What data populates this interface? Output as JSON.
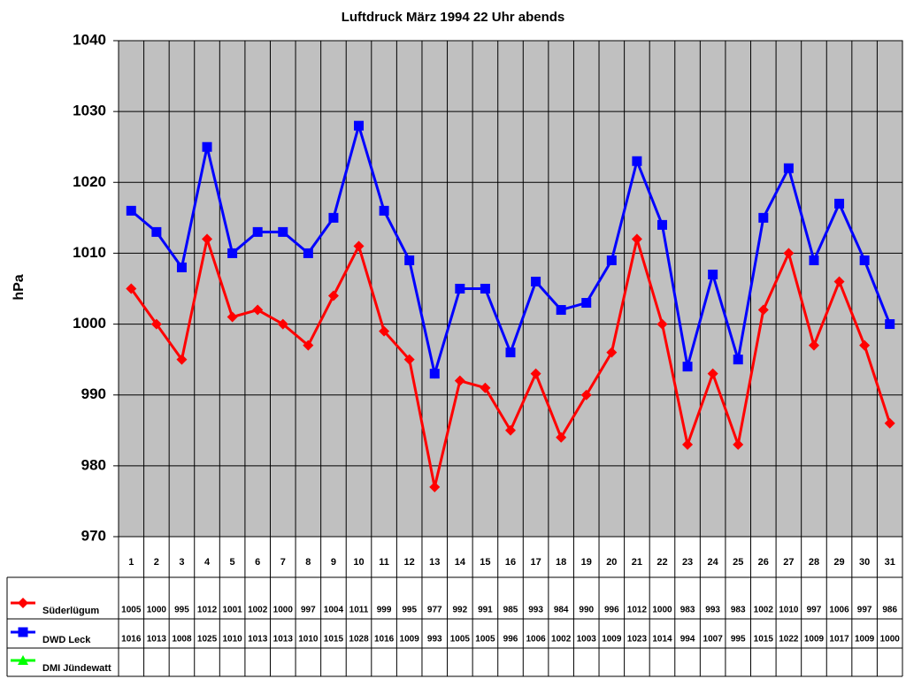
{
  "chart_data": {
    "type": "line",
    "title": "Luftdruck März 1994 22 Uhr abends",
    "y_label": "hPa",
    "categories": [
      "1",
      "2",
      "3",
      "4",
      "5",
      "6",
      "7",
      "8",
      "9",
      "10",
      "11",
      "12",
      "13",
      "14",
      "15",
      "16",
      "17",
      "18",
      "19",
      "20",
      "21",
      "22",
      "23",
      "24",
      "25",
      "26",
      "27",
      "28",
      "29",
      "30",
      "31"
    ],
    "series": [
      {
        "name": "Süderlügum",
        "color": "#ff0000",
        "marker": "diamond",
        "values": [
          1005,
          1000,
          995,
          1012,
          1001,
          1002,
          1000,
          997,
          1004,
          1011,
          999,
          995,
          977,
          992,
          991,
          985,
          993,
          984,
          990,
          996,
          1012,
          1000,
          983,
          993,
          983,
          1002,
          1010,
          997,
          1006,
          997,
          986
        ]
      },
      {
        "name": "DWD Leck",
        "color": "#0000ff",
        "marker": "square",
        "values": [
          1016,
          1013,
          1008,
          1025,
          1010,
          1013,
          1013,
          1010,
          1015,
          1028,
          1016,
          1009,
          993,
          1005,
          1005,
          996,
          1006,
          1002,
          1003,
          1009,
          1023,
          1014,
          994,
          1007,
          995,
          1015,
          1022,
          1009,
          1017,
          1009,
          1000
        ]
      },
      {
        "name": "DMI Jündewatt",
        "color": "#00ff00",
        "marker": "triangle",
        "values": [
          null,
          null,
          null,
          null,
          null,
          null,
          null,
          null,
          null,
          null,
          null,
          null,
          null,
          null,
          null,
          null,
          null,
          null,
          null,
          null,
          null,
          null,
          null,
          null,
          null,
          null,
          null,
          null,
          null,
          null,
          null
        ]
      }
    ],
    "ylim": [
      970,
      1040
    ],
    "yticks": [
      970,
      980,
      990,
      1000,
      1010,
      1020,
      1030,
      1040
    ],
    "grid": true,
    "data_table": true
  }
}
